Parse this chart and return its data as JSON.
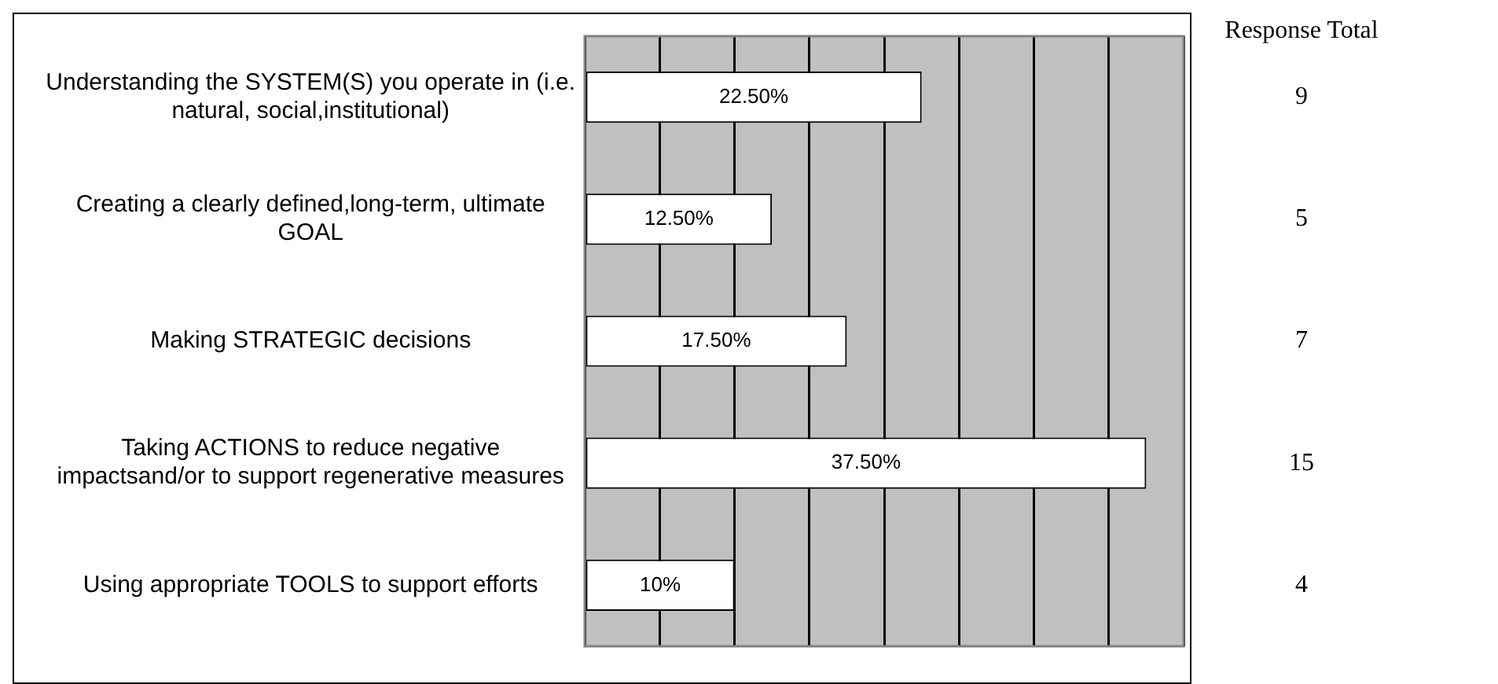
{
  "chart_data": {
    "type": "bar",
    "orientation": "horizontal",
    "categories": [
      "Understanding the SYSTEM(S) you operate in (i.e. natural, social,institutional)",
      "Creating a clearly defined,long-term, ultimate GOAL",
      "Making STRATEGIC decisions",
      "Taking ACTIONS to reduce negative impactsand/or to support regenerative measures",
      "Using appropriate TOOLS to support efforts"
    ],
    "values": [
      22.5,
      12.5,
      17.5,
      37.5,
      10
    ],
    "value_labels": [
      "22.50%",
      "12.50%",
      "17.50%",
      "37.50%",
      "10%"
    ],
    "color": "#ffffff",
    "xlim": [
      0,
      40
    ],
    "xticks": [
      {
        "value": 0,
        "label": null
      },
      {
        "value": 5,
        "label": null
      },
      {
        "value": 10,
        "label": null
      },
      {
        "value": 15,
        "label": null
      },
      {
        "value": 20,
        "label": null
      },
      {
        "value": 25,
        "label": null
      },
      {
        "value": 30,
        "label": null
      },
      {
        "value": 35,
        "label": null
      },
      {
        "value": 40,
        "label": null
      }
    ],
    "grid": "x",
    "tick_labels": "y",
    "annotations": [
      "Response Total",
      "9",
      "5",
      "7",
      "15",
      "4"
    ]
  }
}
